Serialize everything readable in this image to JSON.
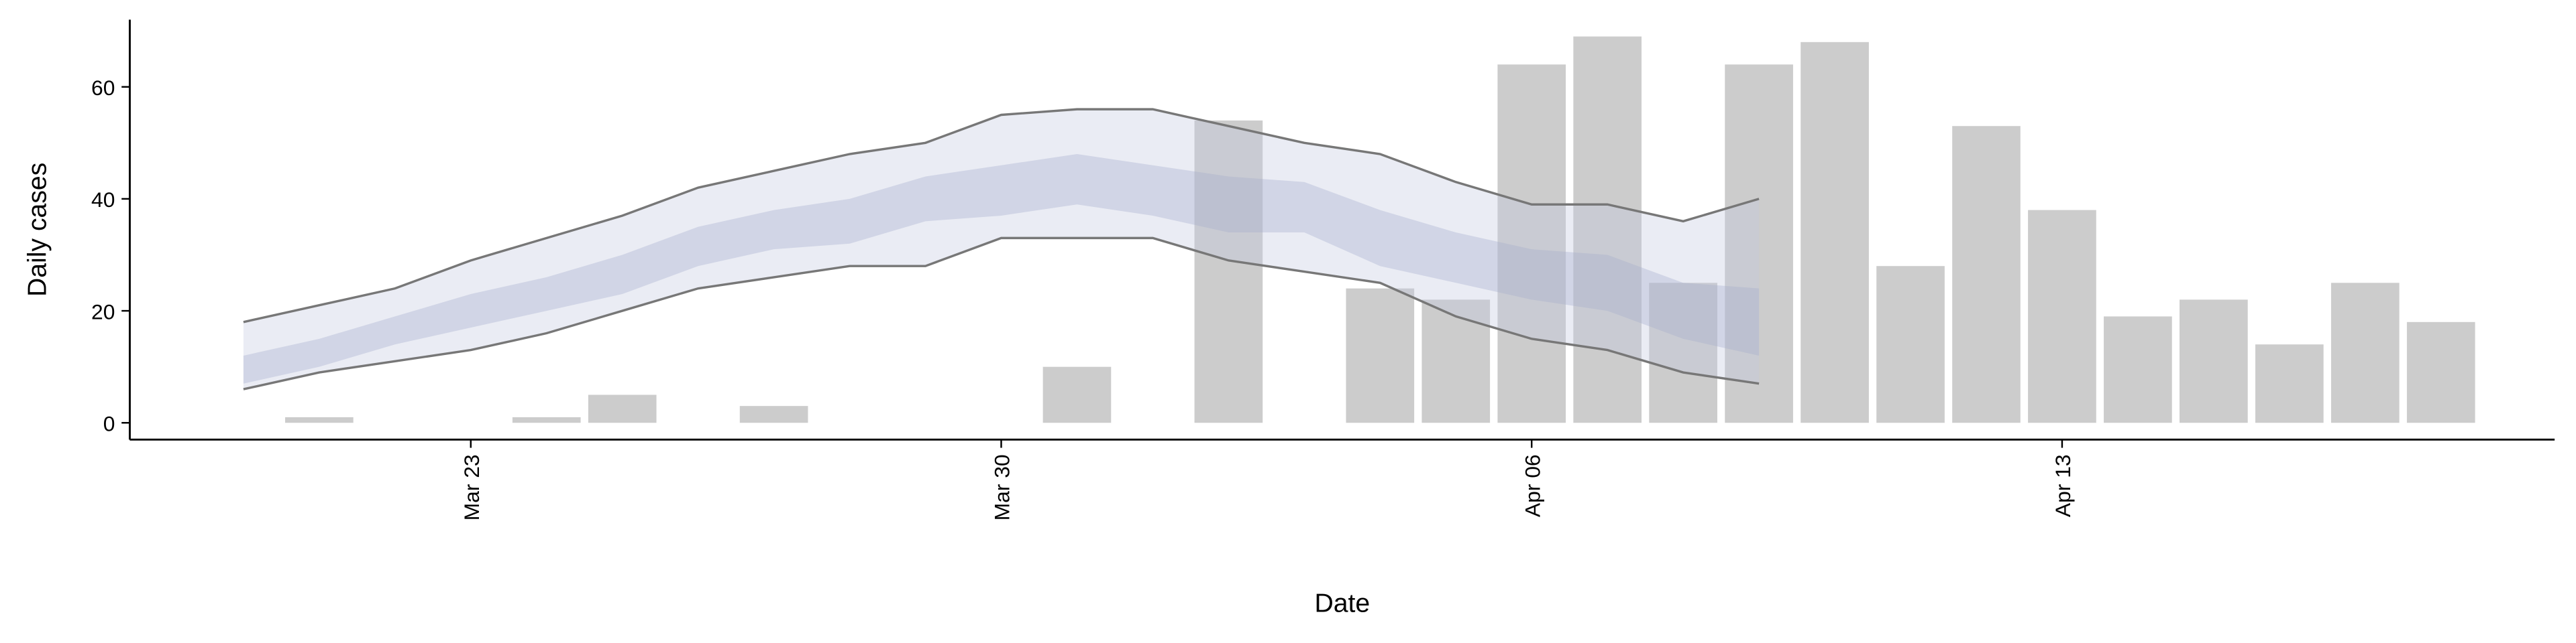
{
  "chart_data": {
    "type": "bar",
    "x_label": "Date",
    "y_label": "Daily cases",
    "x": [
      "Mar 21",
      "Mar 22",
      "Mar 23",
      "Mar 24",
      "Mar 25",
      "Mar 26",
      "Mar 27",
      "Mar 28",
      "Mar 29",
      "Mar 30",
      "Mar 31",
      "Apr 01",
      "Apr 02",
      "Apr 03",
      "Apr 04",
      "Apr 05",
      "Apr 06",
      "Apr 07",
      "Apr 08",
      "Apr 09",
      "Apr 10",
      "Apr 11",
      "Apr 12",
      "Apr 13",
      "Apr 14",
      "Apr 15",
      "Apr 16",
      "Apr 17",
      "Apr 18"
    ],
    "values": [
      1,
      0,
      0,
      1,
      5,
      0,
      3,
      0,
      0,
      0,
      10,
      0,
      54,
      0,
      24,
      22,
      64,
      69,
      25,
      64,
      68,
      28,
      53,
      38,
      19,
      22,
      14,
      25,
      18
    ],
    "color": "#cccccc",
    "bands": {
      "x": [
        "Mar 20",
        "Mar 21",
        "Mar 22",
        "Mar 23",
        "Mar 24",
        "Mar 25",
        "Mar 26",
        "Mar 27",
        "Mar 28",
        "Mar 29",
        "Mar 30",
        "Mar 31",
        "Apr 01",
        "Apr 02",
        "Apr 03",
        "Apr 04",
        "Apr 05",
        "Apr 06",
        "Apr 07",
        "Apr 08",
        "Apr 09"
      ],
      "outer": {
        "color": "#c3c9df",
        "line_color": "#777777",
        "upper": [
          18,
          21,
          24,
          29,
          33,
          37,
          42,
          45,
          48,
          50,
          55,
          56,
          56,
          53,
          50,
          48,
          43,
          39,
          39,
          36,
          40
        ],
        "lower": [
          6,
          9,
          11,
          13,
          16,
          20,
          24,
          26,
          28,
          28,
          33,
          33,
          33,
          29,
          27,
          25,
          19,
          15,
          13,
          9,
          7
        ]
      },
      "inner": {
        "color": "#a3abcc",
        "upper": [
          12,
          15,
          19,
          23,
          26,
          30,
          35,
          38,
          40,
          44,
          46,
          48,
          46,
          44,
          43,
          38,
          34,
          31,
          30,
          25,
          24
        ],
        "lower": [
          7,
          10,
          14,
          17,
          20,
          23,
          28,
          31,
          32,
          36,
          37,
          39,
          37,
          34,
          34,
          28,
          25,
          22,
          20,
          15,
          12
        ]
      }
    },
    "xlim": [
      "Mar 19",
      "Apr 19"
    ],
    "xticks": [
      "Mar 23",
      "Mar 30",
      "Apr 06",
      "Apr 13"
    ],
    "ylim": [
      -3,
      72
    ],
    "yticks": [
      0,
      20,
      40,
      60
    ]
  }
}
